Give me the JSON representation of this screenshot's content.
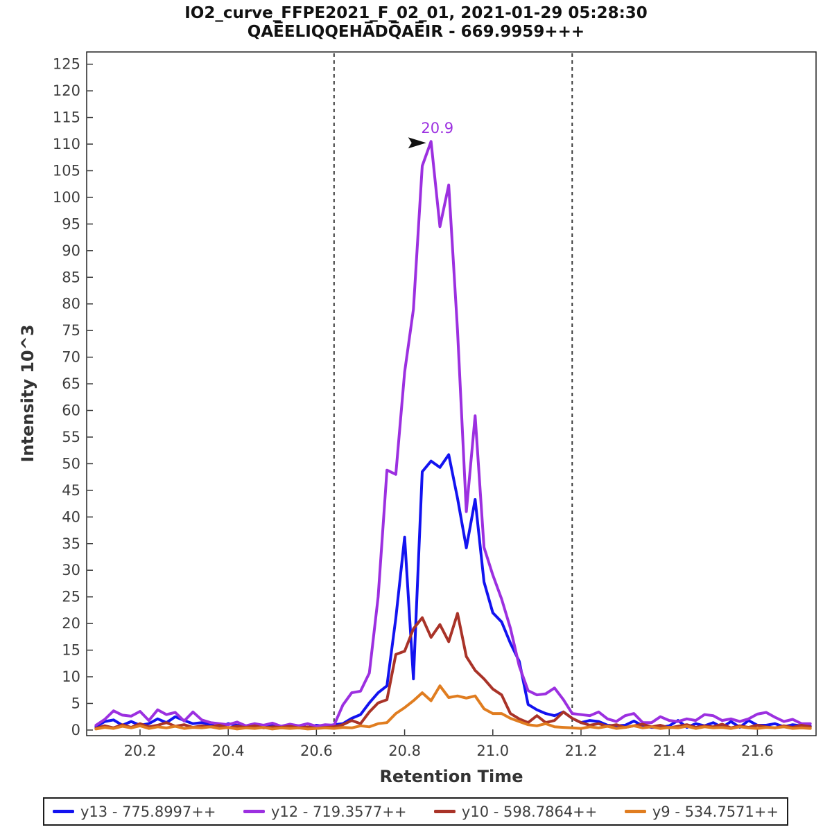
{
  "title": {
    "line1": "IO2_curve_FFPE2021_F_02_01, 2021-01-29 05:28:30",
    "line2": "QAE̅ELIQQEHA̅DQ̅AE̅IR - 669.9959+++"
  },
  "axes": {
    "xlabel": "Retention Time",
    "ylabel": "Intensity 10^3",
    "xlim": [
      20.079,
      21.733
    ],
    "ylim": [
      -1.05,
      127.3
    ],
    "xticks": [
      "20.2",
      "20.4",
      "20.6",
      "20.8",
      "21.0",
      "21.2",
      "21.4",
      "21.6"
    ],
    "yticks": [
      0,
      5,
      10,
      15,
      20,
      25,
      30,
      35,
      40,
      45,
      50,
      55,
      60,
      65,
      70,
      75,
      80,
      85,
      90,
      95,
      100,
      105,
      110,
      115,
      120,
      125
    ],
    "grid": "off",
    "legend_position": "bottom"
  },
  "chart_data": {
    "type": "line",
    "title": "IO2_curve_FFPE2021_F_02_01, 2021-01-29 05:28:30 / QAEELIQQEHADQAEIR - 669.9959+++",
    "xlabel": "Retention Time",
    "ylabel": "Intensity 10^3",
    "peak_boundaries": [
      20.64,
      21.18
    ],
    "boundary_color": "#3a3a3a",
    "annotation": {
      "text": "20.9",
      "x": 20.86,
      "y": 110.5,
      "color": "#9C30E0"
    },
    "x": [
      20.1,
      20.12,
      20.14,
      20.16,
      20.18,
      20.2,
      20.22,
      20.24,
      20.26,
      20.28,
      20.3,
      20.32,
      20.34,
      20.36,
      20.38,
      20.4,
      20.42,
      20.44,
      20.46,
      20.48,
      20.5,
      20.52,
      20.54,
      20.56,
      20.58,
      20.6,
      20.62,
      20.64,
      20.66,
      20.68,
      20.7,
      20.72,
      20.74,
      20.76,
      20.78,
      20.8,
      20.82,
      20.84,
      20.86,
      20.88,
      20.9,
      20.92,
      20.94,
      20.96,
      20.98,
      21.0,
      21.02,
      21.04,
      21.06,
      21.08,
      21.1,
      21.12,
      21.14,
      21.16,
      21.18,
      21.2,
      21.22,
      21.24,
      21.26,
      21.28,
      21.3,
      21.32,
      21.34,
      21.36,
      21.38,
      21.4,
      21.42,
      21.44,
      21.46,
      21.48,
      21.5,
      21.52,
      21.54,
      21.56,
      21.58,
      21.6,
      21.62,
      21.64,
      21.66,
      21.68,
      21.7,
      21.72
    ],
    "series": [
      {
        "name": "y13 - 775.8997++",
        "color": "#1313F0",
        "values": [
          0.6,
          1.6,
          1.9,
          0.9,
          1.6,
          0.9,
          1.2,
          2.1,
          1.4,
          2.5,
          1.8,
          1.2,
          1.4,
          1.0,
          0.5,
          1.2,
          0.9,
          0.7,
          1.1,
          0.5,
          0.9,
          0.6,
          1.0,
          0.8,
          0.5,
          0.9,
          0.7,
          1.0,
          1.2,
          2.2,
          2.9,
          5.1,
          7.0,
          8.3,
          21.0,
          36.2,
          9.6,
          48.5,
          50.5,
          49.3,
          51.7,
          43.5,
          34.2,
          43.3,
          27.8,
          22.0,
          20.3,
          16.3,
          12.9,
          4.8,
          3.8,
          3.1,
          2.7,
          3.4,
          2.2,
          1.4,
          1.8,
          1.6,
          0.9,
          0.8,
          0.9,
          1.7,
          0.8,
          0.5,
          0.5,
          0.8,
          1.8,
          0.5,
          1.2,
          0.8,
          1.4,
          0.5,
          1.6,
          0.5,
          1.8,
          0.9,
          0.9,
          1.2,
          0.6,
          1.0,
          0.8,
          0.7
        ]
      },
      {
        "name": "y12 - 719.3577++",
        "color": "#9C30E0",
        "values": [
          0.9,
          2.0,
          3.6,
          2.8,
          2.6,
          3.5,
          1.8,
          3.8,
          2.9,
          3.3,
          1.7,
          3.4,
          1.9,
          1.4,
          1.2,
          1.0,
          1.5,
          0.8,
          1.2,
          0.9,
          1.3,
          0.7,
          1.1,
          0.8,
          1.2,
          0.7,
          1.0,
          0.9,
          4.7,
          7.0,
          7.3,
          10.7,
          25.0,
          48.8,
          48.0,
          67.2,
          79.0,
          105.9,
          110.5,
          94.5,
          102.3,
          75.0,
          41.0,
          59.0,
          34.3,
          29.1,
          24.6,
          19.1,
          12.0,
          7.4,
          6.6,
          6.8,
          7.9,
          5.7,
          3.1,
          2.9,
          2.7,
          3.4,
          2.1,
          1.6,
          2.7,
          3.1,
          1.4,
          1.4,
          2.5,
          1.8,
          1.6,
          2.1,
          1.8,
          2.9,
          2.7,
          1.8,
          2.1,
          1.6,
          2.1,
          3.0,
          3.3,
          2.4,
          1.6,
          2.0,
          1.2,
          1.2
        ]
      },
      {
        "name": "y10 - 598.7864++",
        "color": "#A93328",
        "values": [
          0.3,
          0.8,
          0.4,
          1.0,
          0.5,
          1.2,
          0.6,
          0.9,
          1.4,
          0.7,
          1.0,
          0.5,
          0.8,
          0.6,
          0.9,
          0.4,
          0.7,
          0.5,
          0.8,
          0.4,
          0.6,
          0.5,
          0.7,
          0.4,
          0.6,
          0.3,
          0.5,
          0.6,
          1.0,
          1.8,
          1.2,
          3.4,
          5.1,
          5.7,
          14.2,
          14.8,
          19.0,
          21.1,
          17.4,
          19.8,
          16.6,
          21.9,
          13.8,
          11.2,
          9.6,
          7.7,
          6.6,
          3.1,
          2.1,
          1.4,
          2.7,
          1.4,
          1.8,
          3.4,
          2.2,
          1.4,
          0.9,
          1.2,
          0.7,
          1.0,
          0.5,
          0.8,
          1.1,
          0.6,
          0.9,
          0.4,
          0.7,
          1.0,
          0.5,
          0.8,
          0.6,
          1.1,
          0.4,
          0.8,
          0.5,
          0.9,
          0.6,
          0.4,
          0.8,
          0.5,
          0.9,
          0.6
        ]
      },
      {
        "name": "y9 - 534.7571++",
        "color": "#E07D20",
        "values": [
          0.2,
          0.5,
          0.3,
          0.7,
          0.4,
          0.8,
          0.3,
          0.6,
          0.4,
          0.7,
          0.3,
          0.5,
          0.4,
          0.6,
          0.3,
          0.5,
          0.2,
          0.4,
          0.3,
          0.5,
          0.2,
          0.4,
          0.3,
          0.4,
          0.2,
          0.3,
          0.4,
          0.3,
          0.5,
          0.4,
          0.8,
          0.6,
          1.2,
          1.4,
          3.1,
          4.2,
          5.5,
          7.0,
          5.5,
          8.3,
          6.1,
          6.4,
          6.0,
          6.4,
          4.0,
          3.1,
          3.1,
          2.2,
          1.6,
          1.0,
          0.8,
          1.2,
          0.6,
          0.5,
          0.4,
          0.3,
          0.6,
          0.4,
          0.7,
          0.3,
          0.5,
          0.8,
          0.4,
          0.6,
          0.3,
          0.5,
          0.4,
          0.7,
          0.3,
          0.6,
          0.4,
          0.5,
          0.3,
          0.6,
          0.4,
          0.3,
          0.5,
          0.4,
          0.6,
          0.3,
          0.4,
          0.3
        ]
      }
    ]
  }
}
